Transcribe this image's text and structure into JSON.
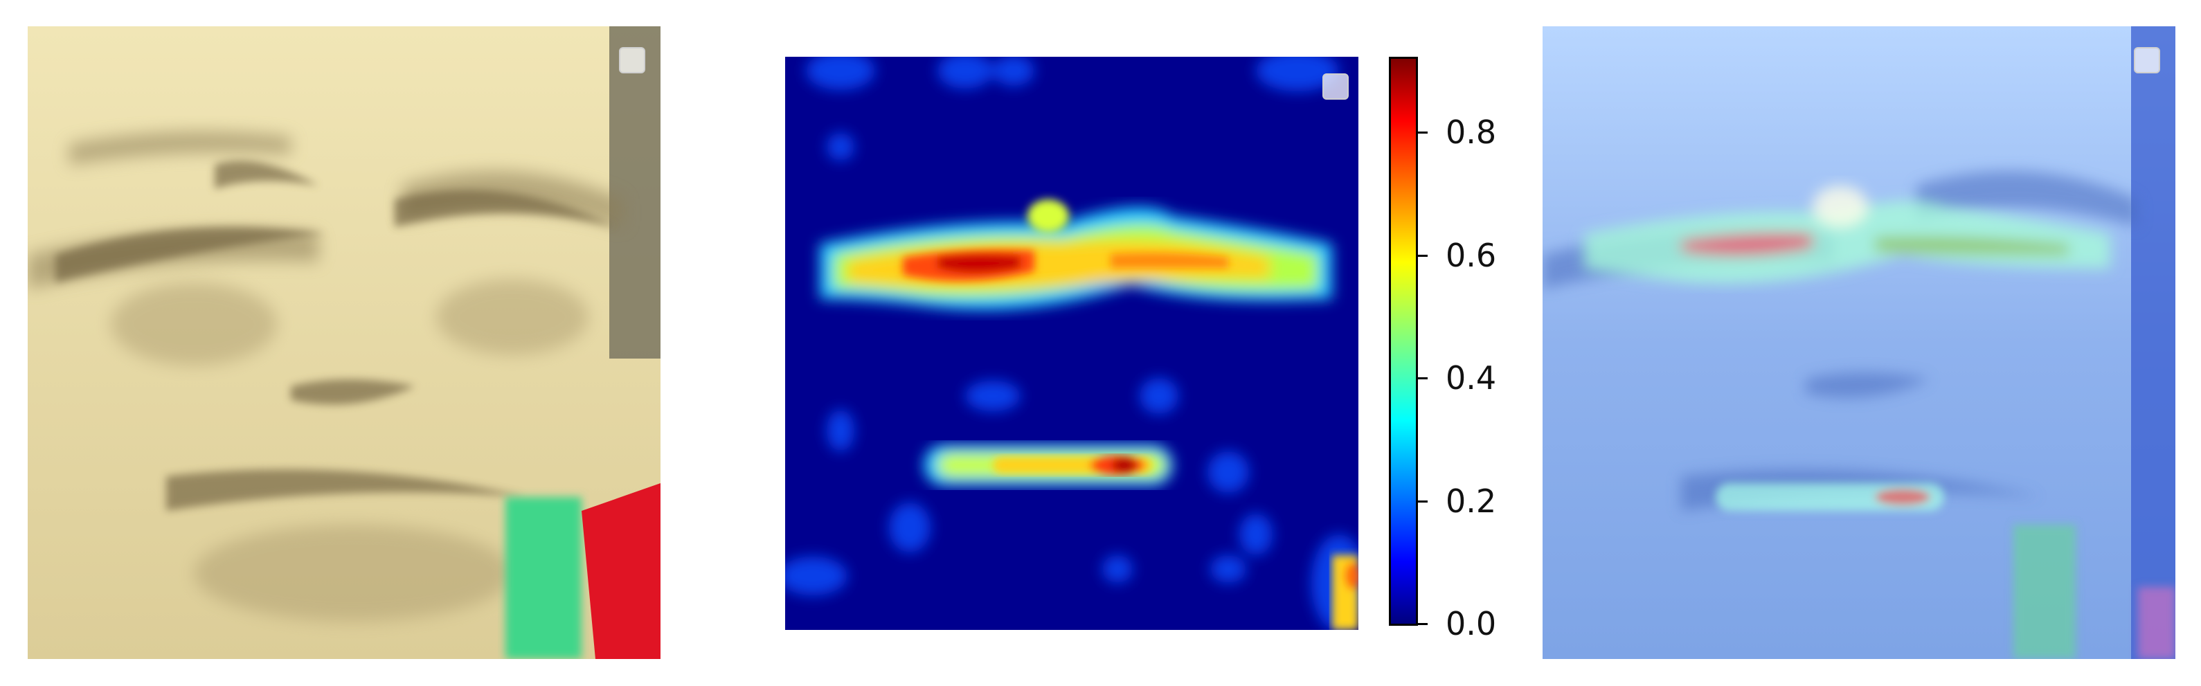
{
  "panels": {
    "face": {
      "content": "grayscale-tinted face crop, furrowed brow, frowning mouth"
    },
    "heatmap": {
      "colormap": "jet"
    },
    "overlay": {
      "content": "heatmap blended over face crop"
    }
  },
  "colorbar": {
    "min": 0.0,
    "max": 0.92,
    "ticks": [
      {
        "value": 0.0,
        "label": "0.0"
      },
      {
        "value": 0.2,
        "label": "0.2"
      },
      {
        "value": 0.4,
        "label": "0.4"
      },
      {
        "value": 0.6,
        "label": "0.6"
      },
      {
        "value": 0.8,
        "label": "0.8"
      }
    ]
  },
  "colors": {
    "jet_low": "#00008f",
    "jet_high": "#7f0000",
    "face_tone": "#e6dcae",
    "overlay_tone": "#7aa6e8"
  }
}
